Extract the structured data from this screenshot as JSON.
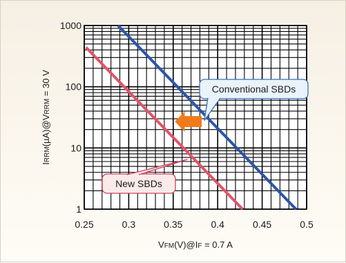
{
  "chart_data": {
    "type": "line",
    "xlabel": {
      "parts": [
        "V",
        "FM",
        "(V)@I",
        "F",
        " = 0.7 A"
      ]
    },
    "ylabel": {
      "parts": [
        "I",
        "RRM",
        "(µA)@V",
        "RRM",
        " = 30 V"
      ]
    },
    "xlim": [
      0.25,
      0.5
    ],
    "ylim": [
      1,
      1000
    ],
    "yscale": "log",
    "grid": true,
    "x_ticks": [
      "0.25",
      "0.3",
      "0.35",
      "0.4",
      "0.45",
      "0.5"
    ],
    "y_ticks": [
      "1",
      "10",
      "100",
      "1000"
    ],
    "series": [
      {
        "name": "Conventional SBDs",
        "color": "#2b55a8",
        "x": [
          0.288,
          0.488
        ],
        "y": [
          1000,
          1
        ]
      },
      {
        "name": "New SBDs",
        "color": "#e25468",
        "x": [
          0.252,
          0.428
        ],
        "y": [
          440,
          1
        ]
      }
    ],
    "annotations": {
      "arrow": {
        "direction": "left",
        "color": "#f07a1c",
        "from_x": 0.382,
        "to_x": 0.352,
        "y": 27
      }
    }
  }
}
